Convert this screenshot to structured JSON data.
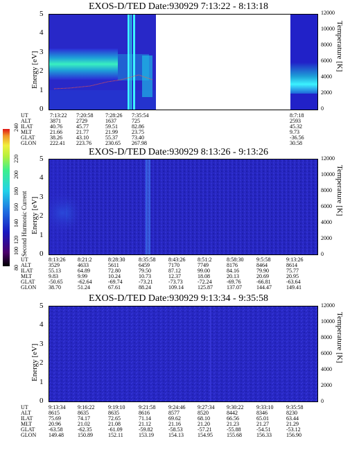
{
  "panels": [
    {
      "title": "EXOS-D/TED   Date:930929  7:13:22 - 8:13:18",
      "ylabel": "Energy [eV]",
      "y2label": "Temperature [K]",
      "yticks": [
        "0",
        "1",
        "2",
        "3",
        "4",
        "5"
      ],
      "y2ticks": [
        "0",
        "2000",
        "4000",
        "6000",
        "8000",
        "10000",
        "12000"
      ],
      "columns": [
        {
          "UT": "7:13:22",
          "ALT": "3871",
          "ILAT": "40.76",
          "MLT": "21.66",
          "GLAT": "38.26",
          "GLON": "222.41"
        },
        {
          "UT": "7:20:58",
          "ALT": "2729",
          "ILAT": "45.77",
          "MLT": "21.77",
          "GLAT": "43.10",
          "GLON": "223.76"
        },
        {
          "UT": "7:28:26",
          "ALT": "1637",
          "ILAT": "59.51",
          "MLT": "21.99",
          "GLAT": "55.37",
          "GLON": "230.65"
        },
        {
          "UT": "7:35:54",
          "ALT": "725",
          "ILAT": "82.86",
          "MLT": "23.75",
          "GLAT": "73.40",
          "GLON": "267.98"
        },
        {
          "UT": "8:7:18",
          "ALT": "2593",
          "ILAT": "45.32",
          "MLT": "9.73",
          "GLAT": "-36.56",
          "GLON": "30.58"
        }
      ]
    },
    {
      "title": "EXOS-D/TED   Date:930929  8:13:26 - 9:13:26",
      "ylabel": "Energy [eV]",
      "y2label": "Temperature [K]",
      "yticks": [
        "0",
        "1",
        "2",
        "3",
        "4",
        "5"
      ],
      "y2ticks": [
        "0",
        "2000",
        "4000",
        "6000",
        "8000",
        "10000",
        "12000"
      ],
      "columns": [
        {
          "UT": "8:13:26",
          "ALT": "3529",
          "ILAT": "55.13",
          "MLT": "9.83",
          "GLAT": "-50.65",
          "GLON": "38.70"
        },
        {
          "UT": "8:21:2",
          "ALT": "4633",
          "ILAT": "64.89",
          "MLT": "9.99",
          "GLAT": "-62.64",
          "GLON": "51.24"
        },
        {
          "UT": "8:28:30",
          "ALT": "5611",
          "ILAT": "72.80",
          "MLT": "10.24",
          "GLAT": "-69.74",
          "GLON": "67.61"
        },
        {
          "UT": "8:35:58",
          "ALT": "6459",
          "ILAT": "79.50",
          "MLT": "10.73",
          "GLAT": "-73.21",
          "GLON": "88.24"
        },
        {
          "UT": "8:43:26",
          "ALT": "7170",
          "ILAT": "87.12",
          "MLT": "12.37",
          "GLAT": "-73.73",
          "GLON": "109.14"
        },
        {
          "UT": "8:51:2",
          "ALT": "7749",
          "ILAT": "99.00",
          "MLT": "18.08",
          "GLAT": "-72.24",
          "GLON": "125.87"
        },
        {
          "UT": "8:58:30",
          "ALT": "8176",
          "ILAT": "84.16",
          "MLT": "20.13",
          "GLAT": "-69.76",
          "GLON": "137.07"
        },
        {
          "UT": "9:5:58",
          "ALT": "8464",
          "ILAT": "79.90",
          "MLT": "20.69",
          "GLAT": "-66.81",
          "GLON": "144.47"
        },
        {
          "UT": "9:13:26",
          "ALT": "8614",
          "ILAT": "75.77",
          "MLT": "20.95",
          "GLAT": "-63.64",
          "GLON": "149.41"
        }
      ]
    },
    {
      "title": "EXOS-D/TED   Date:930929  9:13:34 - 9:35:58",
      "ylabel": "Energy [eV]",
      "y2label": "Temperature [K]",
      "yticks": [
        "0",
        "1",
        "2",
        "3",
        "4",
        "5"
      ],
      "y2ticks": [
        "0",
        "2000",
        "4000",
        "6000",
        "8000",
        "10000",
        "12000"
      ],
      "columns": [
        {
          "UT": "9:13:34",
          "ALT": "8615",
          "ILAT": "75.69",
          "MLT": "20.96",
          "GLAT": "-63.58",
          "GLON": "149.48"
        },
        {
          "UT": "9:16:22",
          "ALT": "8635",
          "ILAT": "74.17",
          "MLT": "21.02",
          "GLAT": "-62.35",
          "GLON": "150.89"
        },
        {
          "UT": "9:19:10",
          "ALT": "8635",
          "ILAT": "72.65",
          "MLT": "21.08",
          "GLAT": "-61.09",
          "GLON": "152.11"
        },
        {
          "UT": "9:21:58",
          "ALT": "8616",
          "ILAT": "71.14",
          "MLT": "21.12",
          "GLAT": "-59.82",
          "GLON": "153.19"
        },
        {
          "UT": "9:24:46",
          "ALT": "8577",
          "ILAT": "69.62",
          "MLT": "21.16",
          "GLAT": "-58.53",
          "GLON": "154.13"
        },
        {
          "UT": "9:27:34",
          "ALT": "8520",
          "ILAT": "68.10",
          "MLT": "21.20",
          "GLAT": "-57.21",
          "GLON": "154.95"
        },
        {
          "UT": "9:30:22",
          "ALT": "8442",
          "ILAT": "66.56",
          "MLT": "21.23",
          "GLAT": "-55.88",
          "GLON": "155.68"
        },
        {
          "UT": "9:33:10",
          "ALT": "8346",
          "ILAT": "65.01",
          "MLT": "21.27",
          "GLAT": "-54.51",
          "GLON": "156.33"
        },
        {
          "UT": "9:35:58",
          "ALT": "8230",
          "ILAT": "63.44",
          "MLT": "21.29",
          "GLAT": "-53.12",
          "GLON": "156.90"
        }
      ]
    }
  ],
  "rowlabels": [
    "UT",
    "ALT",
    "ILAT",
    "MLT",
    "GLAT",
    "GLON"
  ],
  "colorbar": {
    "label": "Second Harmonic Current",
    "ticks": [
      "80",
      "100",
      "120",
      "140",
      "160",
      "180",
      "200",
      "220",
      "240"
    ]
  },
  "chart_data": [
    {
      "type": "heatmap",
      "title": "EXOS-D/TED   Date:930929  7:13:22 - 8:13:18",
      "x": [
        "7:13:22",
        "7:20:58",
        "7:28:26",
        "7:35:54",
        "8:7:18"
      ],
      "ylabel": "Energy [eV]",
      "ylim": [
        0,
        5
      ],
      "y2label": "Temperature [K]",
      "y2lim": [
        0,
        12000
      ],
      "data_gap": [
        "7:35:54",
        "8:7:18"
      ]
    },
    {
      "type": "heatmap",
      "title": "EXOS-D/TED   Date:930929  8:13:26 - 9:13:26",
      "x": [
        "8:13:26",
        "8:21:2",
        "8:28:30",
        "8:35:58",
        "8:43:26",
        "8:51:2",
        "8:58:30",
        "9:5:58",
        "9:13:26"
      ],
      "ylabel": "Energy [eV]",
      "ylim": [
        0,
        5
      ],
      "y2label": "Temperature [K]",
      "y2lim": [
        0,
        12000
      ]
    },
    {
      "type": "heatmap",
      "title": "EXOS-D/TED   Date:930929  9:13:34 - 9:35:58",
      "x": [
        "9:13:34",
        "9:16:22",
        "9:19:10",
        "9:21:58",
        "9:24:46",
        "9:27:34",
        "9:30:22",
        "9:33:10",
        "9:35:58"
      ],
      "ylabel": "Energy [eV]",
      "ylim": [
        0,
        5
      ],
      "y2label": "Temperature [K]",
      "y2lim": [
        0,
        12000
      ]
    }
  ]
}
